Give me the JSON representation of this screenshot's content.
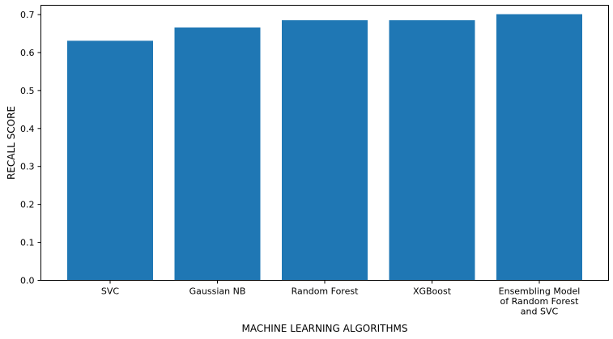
{
  "chart_data": {
    "type": "bar",
    "categories": [
      [
        "SVC"
      ],
      [
        "Gaussian NB"
      ],
      [
        "Random Forest"
      ],
      [
        "XGBoost"
      ],
      [
        "Ensembling Model",
        "of Random Forest",
        "and SVC"
      ]
    ],
    "values": [
      0.631,
      0.666,
      0.685,
      0.685,
      0.701
    ],
    "xlabel": "MACHINE LEARNING ALGORITHMS",
    "ylabel": "RECALL SCORE",
    "ylim": [
      0,
      0.7245
    ],
    "yticks": [
      "0.0",
      "0.1",
      "0.2",
      "0.3",
      "0.4",
      "0.5",
      "0.6",
      "0.7"
    ],
    "grid": false,
    "bar_color": "#1f77b4"
  }
}
